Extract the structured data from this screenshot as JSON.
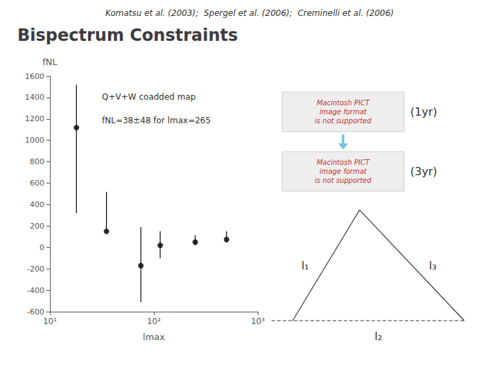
{
  "chart_data": {
    "type": "scatter",
    "title": "Bispectrum Constraints",
    "subtitle": "Komatsu et al. (2003);  Spergel et al. (2006);  Creminelli et al. (2006)",
    "x": [
      18,
      35,
      75,
      115,
      250,
      500
    ],
    "values": [
      1120,
      150,
      -170,
      20,
      50,
      75
    ],
    "yerr_lo": [
      800,
      0,
      340,
      120,
      30,
      30
    ],
    "yerr_hi": [
      400,
      370,
      360,
      130,
      65,
      75
    ],
    "color": "#000000",
    "marker": "circle",
    "xlabel": "lmax",
    "ylabel": "fNL",
    "log": "x",
    "xlim": [
      10,
      1000
    ],
    "xticks": [
      {
        "value": 10,
        "label": "10¹"
      },
      {
        "value": 100,
        "label": "10²"
      },
      {
        "value": 1000,
        "label": "10³"
      }
    ],
    "ylim": [
      -600,
      1600
    ],
    "yticks": [
      -600,
      -400,
      -200,
      0,
      200,
      400,
      600,
      800,
      1000,
      1200,
      1400,
      1600
    ],
    "grid": false,
    "annotations": [
      "Q+V+W coadded map",
      "fNL=38±48 for lmax=265",
      "Macintosh PICT\nimage format\nis not supported",
      "(1yr)",
      "Macintosh PICT\nimage format\nis not supported",
      "(3yr)",
      "l₁",
      "l₃",
      "l₂"
    ]
  }
}
